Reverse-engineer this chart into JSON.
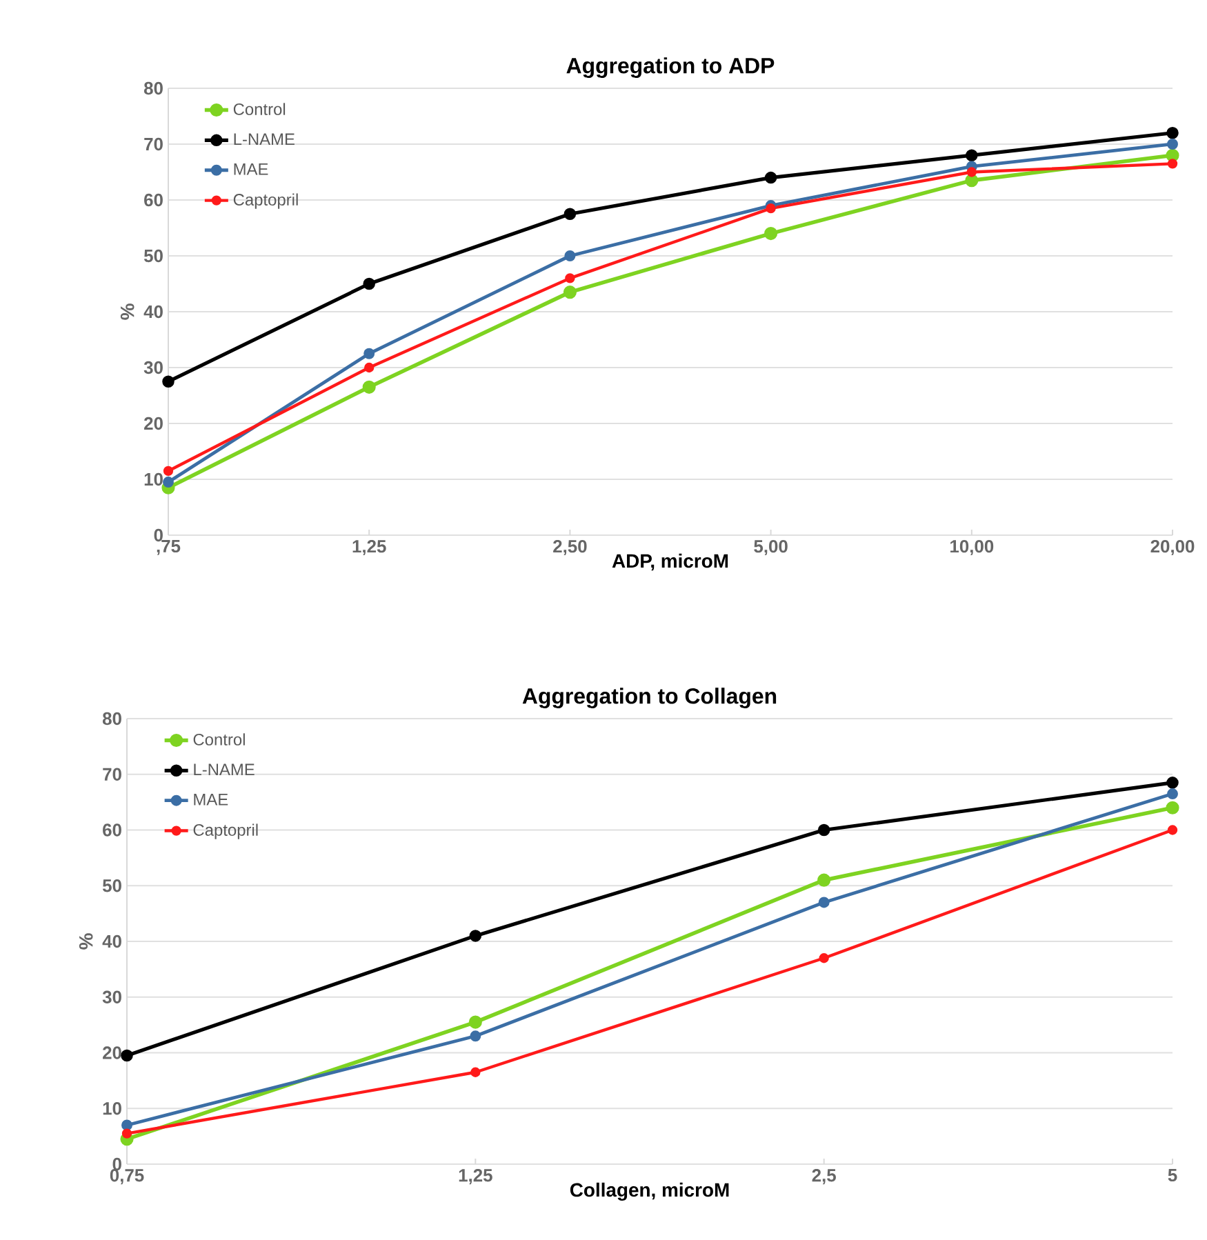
{
  "chart_data": [
    {
      "type": "line",
      "title": "Aggregation to ADP",
      "xlabel": "ADP, microM",
      "ylabel": "%",
      "categories": [
        ",75",
        "1,25",
        "2,50",
        "5,00",
        "10,00",
        "20,00"
      ],
      "series": [
        {
          "name": "Control",
          "color": "#7ed321",
          "values": [
            8.5,
            26.5,
            43.5,
            54,
            63.5,
            68
          ]
        },
        {
          "name": "L-NAME",
          "color": "#000000",
          "values": [
            27.5,
            45,
            57.5,
            64,
            68,
            72
          ]
        },
        {
          "name": "MAE",
          "color": "#3b6ea5",
          "values": [
            9.5,
            32.5,
            50,
            59,
            66,
            70
          ]
        },
        {
          "name": "Captopril",
          "color": "#ff1a1a",
          "values": [
            11.5,
            30,
            46,
            58.5,
            65,
            66.5
          ]
        }
      ],
      "ylim": [
        0,
        80
      ],
      "yticks": [
        0,
        10,
        20,
        30,
        40,
        50,
        60,
        70,
        80
      ],
      "grid": "y",
      "legend": "top left",
      "marker": "circle",
      "line_style": "solid"
    },
    {
      "type": "line",
      "title": "Aggregation to Collagen",
      "xlabel": "Collagen, microM",
      "ylabel": "%",
      "categories": [
        "0,75",
        "1,25",
        "2,5",
        "5"
      ],
      "series": [
        {
          "name": "Control",
          "color": "#7ed321",
          "values": [
            4.5,
            25.5,
            51,
            64
          ]
        },
        {
          "name": "L-NAME",
          "color": "#000000",
          "values": [
            19.5,
            41,
            60,
            68.5
          ]
        },
        {
          "name": "MAE",
          "color": "#3b6ea5",
          "values": [
            7,
            23,
            47,
            66.5
          ]
        },
        {
          "name": "Captopril",
          "color": "#ff1a1a",
          "values": [
            5.5,
            16.5,
            37,
            60
          ]
        }
      ],
      "ylim": [
        0,
        80
      ],
      "yticks": [
        0,
        10,
        20,
        30,
        40,
        50,
        60,
        70,
        80
      ],
      "grid": "y",
      "legend": "top left",
      "marker": "circle",
      "line_style": "solid"
    }
  ]
}
